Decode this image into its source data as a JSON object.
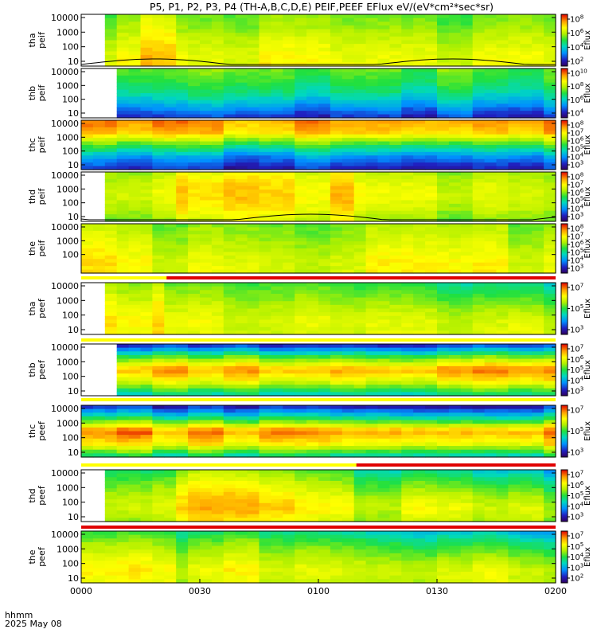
{
  "chart_data": {
    "type": "heatmap",
    "title": "P5, P1, P2, P3, P4 (TH-A,B,C,D,E) PEIF,PEEF EFlux eV/(eV*cm²*sec*sr)",
    "x_ticks": [
      "0000",
      "0030",
      "0100",
      "0130",
      "0200"
    ],
    "x_label_line1": "hhmm",
    "x_label_line2": "2025 May 08",
    "colorbar_label": "Eflux",
    "colors": {
      "background": "#ffffff",
      "mode_bar_yellow": "#ffff00",
      "mode_bar_red": "#e00000",
      "gap": "#ffffff",
      "trace": "#000000"
    },
    "panels": [
      {
        "id": "tha-peif",
        "ylabel": [
          "tha",
          "peif"
        ],
        "y_ticks": [
          "10000",
          "1000",
          "100",
          "10"
        ],
        "colorbar_ticks": [
          {
            "b": "10",
            "e": "8"
          },
          {
            "b": "10",
            "e": "6"
          },
          {
            "b": "10",
            "e": "4"
          },
          {
            "b": "10",
            "e": "2"
          }
        ],
        "profile": [
          0.72,
          0.7,
          0.66,
          0.6,
          0.56
        ],
        "gap_start_frac": 0.03,
        "cool_frac": 0,
        "hot_band": [
          0.12,
          0.2
        ],
        "trace": true,
        "bar_after": null
      },
      {
        "id": "thb-peif",
        "ylabel": [
          "thb",
          "peif"
        ],
        "y_ticks": [
          "10000",
          "1000",
          "100",
          "10"
        ],
        "colorbar_ticks": [
          {
            "b": "10",
            "e": "10"
          },
          {
            "b": "10",
            "e": "8"
          },
          {
            "b": "10",
            "e": "6"
          },
          {
            "b": "10",
            "e": "4"
          }
        ],
        "profile": [
          0.12,
          0.28,
          0.42,
          0.5,
          0.55
        ],
        "gap_start_frac": 0.075,
        "cool_frac": 0,
        "hot_band": null,
        "trace": false,
        "bar_after": null
      },
      {
        "id": "thc-peif",
        "ylabel": [
          "thc",
          "peif"
        ],
        "y_ticks": [
          "10000",
          "1000",
          "100",
          "10"
        ],
        "colorbar_ticks": [
          {
            "b": "10",
            "e": "8"
          },
          {
            "b": "10",
            "e": "7"
          },
          {
            "b": "10",
            "e": "6"
          },
          {
            "b": "10",
            "e": "5"
          },
          {
            "b": "10",
            "e": "4"
          },
          {
            "b": "10",
            "e": "3"
          }
        ],
        "profile": [
          0.1,
          0.25,
          0.5,
          0.8,
          0.86
        ],
        "gap_start_frac": 0,
        "cool_frac": 0,
        "hot_band": null,
        "trace": false,
        "bar_after": null
      },
      {
        "id": "thd-peif",
        "ylabel": [
          "thd",
          "peif"
        ],
        "y_ticks": [
          "10000",
          "1000",
          "100",
          "10"
        ],
        "colorbar_ticks": [
          {
            "b": "10",
            "e": "8"
          },
          {
            "b": "10",
            "e": "7"
          },
          {
            "b": "10",
            "e": "6"
          },
          {
            "b": "10",
            "e": "5"
          },
          {
            "b": "10",
            "e": "4"
          },
          {
            "b": "10",
            "e": "3"
          }
        ],
        "profile": [
          0.58,
          0.66,
          0.7,
          0.68,
          0.62
        ],
        "gap_start_frac": 0.05,
        "cool_frac": 0,
        "hot_band": [
          0.2,
          0.57
        ],
        "trace": true,
        "bar_after": null
      },
      {
        "id": "the-peif",
        "ylabel": [
          "the",
          "peif"
        ],
        "y_ticks": [
          "10000",
          "1000",
          "100"
        ],
        "colorbar_ticks": [
          {
            "b": "10",
            "e": "8"
          },
          {
            "b": "10",
            "e": "7"
          },
          {
            "b": "10",
            "e": "6"
          },
          {
            "b": "10",
            "e": "5"
          },
          {
            "b": "10",
            "e": "4"
          },
          {
            "b": "10",
            "e": "3"
          }
        ],
        "profile": [
          0.7,
          0.7,
          0.66,
          0.62,
          0.58
        ],
        "gap_start_frac": 0,
        "cool_frac": 0,
        "hot_band": [
          0.0,
          0.15
        ],
        "trace": false,
        "bar_after": {
          "red_start_frac": 0.18
        }
      },
      {
        "id": "tha-peef",
        "ylabel": [
          "tha",
          "peef"
        ],
        "y_ticks": [
          "10000",
          "1000",
          "100",
          "10"
        ],
        "colorbar_ticks": [
          {
            "b": "10",
            "e": "7"
          },
          {
            "b": "10",
            "e": "5"
          },
          {
            "b": "10",
            "e": "3"
          }
        ],
        "profile": [
          0.66,
          0.68,
          0.64,
          0.58,
          0.52
        ],
        "gap_start_frac": 0.03,
        "cool_frac": 0.45,
        "hot_band": [
          0.0,
          0.16
        ],
        "trace": false,
        "bar_after": {
          "red_start_frac": null
        }
      },
      {
        "id": "thb-peef",
        "ylabel": [
          "thb",
          "peef"
        ],
        "y_ticks": [
          "10000",
          "1000",
          "100",
          "10"
        ],
        "colorbar_ticks": [
          {
            "b": "10",
            "e": "7"
          },
          {
            "b": "10",
            "e": "6"
          },
          {
            "b": "10",
            "e": "5"
          },
          {
            "b": "10",
            "e": "4"
          },
          {
            "b": "10",
            "e": "3"
          }
        ],
        "profile": [
          0.4,
          0.7,
          0.88,
          0.55,
          0.12
        ],
        "gap_start_frac": 0.065,
        "cool_frac": 0,
        "hot_band": null,
        "trace": false,
        "bar_after": {
          "red_start_frac": null
        }
      },
      {
        "id": "thc-peef",
        "ylabel": [
          "thc",
          "peef"
        ],
        "y_ticks": [
          "10000",
          "1000",
          "100",
          "10"
        ],
        "colorbar_ticks": [
          {
            "b": "10",
            "e": "7"
          },
          {
            "b": "10",
            "e": "5"
          },
          {
            "b": "10",
            "e": "3"
          }
        ],
        "profile": [
          0.4,
          0.74,
          0.88,
          0.45,
          0.08
        ],
        "gap_start_frac": 0,
        "cool_frac": 0,
        "hot_band": null,
        "trace": false,
        "bar_after": {
          "red_start_frac": 0.58
        }
      },
      {
        "id": "thd-peef",
        "ylabel": [
          "thd",
          "peef"
        ],
        "y_ticks": [
          "10000",
          "1000",
          "100",
          "10"
        ],
        "colorbar_ticks": [
          {
            "b": "10",
            "e": "7"
          },
          {
            "b": "10",
            "e": "6"
          },
          {
            "b": "10",
            "e": "5"
          },
          {
            "b": "10",
            "e": "4"
          },
          {
            "b": "10",
            "e": "3"
          }
        ],
        "profile": [
          0.62,
          0.7,
          0.66,
          0.58,
          0.48
        ],
        "gap_start_frac": 0.05,
        "cool_frac": 0.5,
        "hot_band": [
          0.2,
          0.57
        ],
        "trace": false,
        "bar_after": {
          "red_start_frac": 0
        }
      },
      {
        "id": "the-peef",
        "ylabel": [
          "the",
          "peef"
        ],
        "y_ticks": [
          "10000",
          "1000",
          "100",
          "10"
        ],
        "colorbar_ticks": [
          {
            "b": "10",
            "e": "7"
          },
          {
            "b": "10",
            "e": "5"
          },
          {
            "b": "10",
            "e": "4"
          },
          {
            "b": "10",
            "e": "3"
          },
          {
            "b": "10",
            "e": "2"
          }
        ],
        "profile": [
          0.66,
          0.7,
          0.64,
          0.56,
          0.44
        ],
        "gap_start_frac": 0,
        "cool_frac": 0.5,
        "hot_band": [
          0.0,
          0.18
        ],
        "trace": false,
        "bar_after": null
      }
    ]
  }
}
